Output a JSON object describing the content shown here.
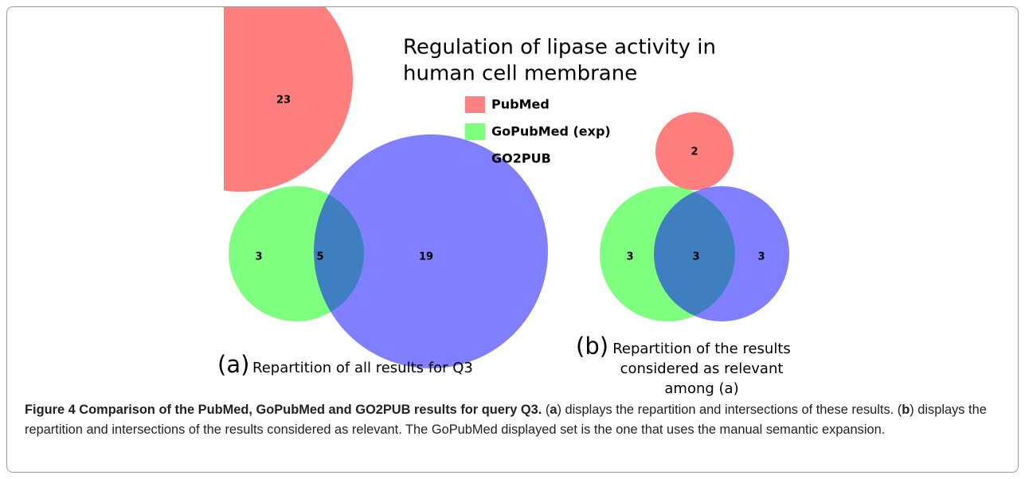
{
  "title": [
    "Regulation of lipase activity in",
    "human cell membrane"
  ],
  "legend": [
    {
      "name": "PubMed",
      "color": "#ff8080"
    },
    {
      "name": "GoPubMed (exp)",
      "color": "#80ff80"
    },
    {
      "name": "GO2PUB",
      "color": "#8080ff"
    }
  ],
  "panel_a": {
    "letter": "(a)",
    "label": "Repartition of all results for Q3",
    "regions": {
      "pubmed": "23",
      "gopubmed": "3",
      "gopubmed_go2pub": "5",
      "go2pub": "19"
    }
  },
  "panel_b": {
    "letter": "(b)",
    "label": [
      "Repartition of the results",
      "considered as relevant",
      "among (a)"
    ],
    "regions": {
      "pubmed": "2",
      "gopubmed": "3",
      "gopubmed_go2pub": "3",
      "go2pub": "3"
    }
  },
  "caption": {
    "heading": "Figure 4 Comparison of the PubMed, GoPubMed and GO2PUB results for query Q3.",
    "parts": [
      "(",
      "a",
      ") displays the repartition and intersections of these results. (",
      "b",
      ") displays the repartition and intersections of the results considered as relevant. The GoPubMed displayed set is the one that uses the manual semantic expansion."
    ]
  }
}
